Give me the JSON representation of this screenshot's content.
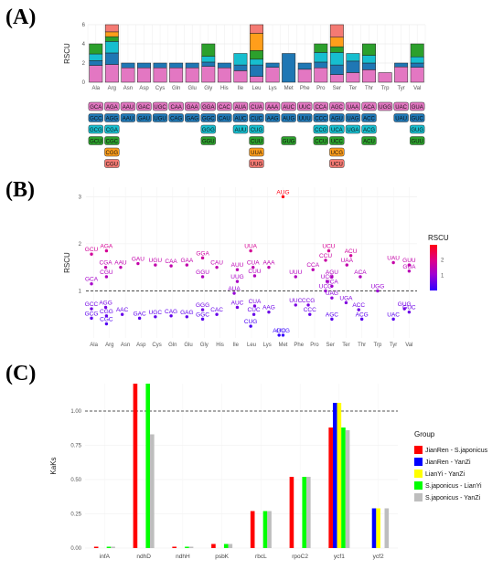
{
  "panels": {
    "a": "(A)",
    "b": "(B)",
    "c": "(C)"
  },
  "colors": {
    "pink": "#E377C2",
    "blue": "#1F77B4",
    "teal": "#17BECF",
    "green": "#2CA02C",
    "orange": "#FF9E1B",
    "red": "#F47A73"
  },
  "chart_data": [
    {
      "type": "bar",
      "panel": "A",
      "ylabel": "RSCU",
      "ylim": [
        0,
        6
      ],
      "yticks": [
        0,
        2,
        4,
        6
      ],
      "grid": true,
      "categories": [
        "Ala",
        "Arg",
        "Asn",
        "Asp",
        "Cys",
        "Gln",
        "Glu",
        "Gly",
        "His",
        "Ile",
        "Leu",
        "Lys",
        "Met",
        "Phe",
        "Pro",
        "Ser",
        "Ter",
        "Thr",
        "Trp",
        "Tyr",
        "Val"
      ],
      "stacks": [
        [
          {
            "c": "pink",
            "v": 1.75
          },
          {
            "c": "blue",
            "v": 0.5
          },
          {
            "c": "teal",
            "v": 0.7
          },
          {
            "c": "green",
            "v": 1.05
          }
        ],
        [
          {
            "c": "pink",
            "v": 1.85
          },
          {
            "c": "blue",
            "v": 1.2
          },
          {
            "c": "teal",
            "v": 1.2
          },
          {
            "c": "green",
            "v": 0.5
          },
          {
            "c": "orange",
            "v": 0.5
          },
          {
            "c": "red",
            "v": 0.75
          }
        ],
        [
          {
            "c": "pink",
            "v": 1.5
          },
          {
            "c": "blue",
            "v": 0.5
          }
        ],
        [
          {
            "c": "pink",
            "v": 1.5
          },
          {
            "c": "blue",
            "v": 0.5
          }
        ],
        [
          {
            "c": "pink",
            "v": 1.5
          },
          {
            "c": "blue",
            "v": 0.5
          }
        ],
        [
          {
            "c": "pink",
            "v": 1.5
          },
          {
            "c": "blue",
            "v": 0.5
          }
        ],
        [
          {
            "c": "pink",
            "v": 1.5
          },
          {
            "c": "blue",
            "v": 0.5
          }
        ],
        [
          {
            "c": "pink",
            "v": 1.65
          },
          {
            "c": "blue",
            "v": 0.45
          },
          {
            "c": "teal",
            "v": 0.6
          },
          {
            "c": "green",
            "v": 1.3
          }
        ],
        [
          {
            "c": "pink",
            "v": 1.5
          },
          {
            "c": "blue",
            "v": 0.5
          }
        ],
        [
          {
            "c": "pink",
            "v": 1.2
          },
          {
            "c": "blue",
            "v": 0.6
          },
          {
            "c": "teal",
            "v": 1.2
          }
        ],
        [
          {
            "c": "pink",
            "v": 0.6
          },
          {
            "c": "blue",
            "v": 1.2
          },
          {
            "c": "teal",
            "v": 0.6
          },
          {
            "c": "green",
            "v": 0.9
          },
          {
            "c": "orange",
            "v": 1.8
          },
          {
            "c": "red",
            "v": 0.9
          }
        ],
        [
          {
            "c": "pink",
            "v": 1.55
          },
          {
            "c": "blue",
            "v": 0.45
          }
        ],
        [
          {
            "c": "blue",
            "v": 3.0
          }
        ],
        [
          {
            "c": "pink",
            "v": 1.35
          },
          {
            "c": "blue",
            "v": 0.65
          }
        ],
        [
          {
            "c": "pink",
            "v": 1.5
          },
          {
            "c": "blue",
            "v": 0.6
          },
          {
            "c": "teal",
            "v": 1.0
          },
          {
            "c": "green",
            "v": 0.9
          }
        ],
        [
          {
            "c": "pink",
            "v": 0.8
          },
          {
            "c": "blue",
            "v": 1.0
          },
          {
            "c": "teal",
            "v": 1.3
          },
          {
            "c": "green",
            "v": 0.6
          },
          {
            "c": "orange",
            "v": 1.0
          },
          {
            "c": "red",
            "v": 1.3
          }
        ],
        [
          {
            "c": "pink",
            "v": 1.0
          },
          {
            "c": "blue",
            "v": 1.2
          },
          {
            "c": "teal",
            "v": 0.8
          }
        ],
        [
          {
            "c": "pink",
            "v": 1.3
          },
          {
            "c": "blue",
            "v": 0.7
          },
          {
            "c": "teal",
            "v": 0.8
          },
          {
            "c": "green",
            "v": 1.2
          }
        ],
        [
          {
            "c": "pink",
            "v": 1.0
          }
        ],
        [
          {
            "c": "pink",
            "v": 1.6
          },
          {
            "c": "blue",
            "v": 0.4
          }
        ],
        [
          {
            "c": "pink",
            "v": 1.55
          },
          {
            "c": "blue",
            "v": 0.45
          },
          {
            "c": "teal",
            "v": 0.65
          },
          {
            "c": "green",
            "v": 1.35
          }
        ]
      ],
      "codon_rows": [
        {
          "c": "pink",
          "items": [
            "GCA",
            "AGA",
            "AAU",
            "GAC",
            "UGC",
            "CAA",
            "GAA",
            "GGA",
            "CAC",
            "AUA",
            "CUA",
            "AAA",
            "AUC",
            "UUC",
            "CCA",
            "AGC",
            "UAA",
            "ACA",
            "UGG",
            "UAC",
            "GUA"
          ]
        },
        {
          "c": "blue",
          "items": [
            "GCC",
            "AGG",
            "AAU",
            "GAU",
            "UGU",
            "CAG",
            "GAG",
            "GGC",
            "CAU",
            "AUC",
            "CUC",
            "AAG",
            "AUG",
            "UUU",
            "CCC",
            "AGU",
            "UAG",
            "ACC",
            "",
            "UAU",
            "GUC"
          ]
        },
        {
          "c": "teal",
          "items": [
            "GCG",
            "CGA",
            "",
            "",
            "",
            "",
            "",
            "GGG",
            "",
            "AUU",
            "CUG",
            "",
            "",
            "",
            "CCG",
            "UCA",
            "UGA",
            "ACG",
            "",
            "",
            "GUG"
          ]
        },
        {
          "c": "green",
          "items": [
            "GCU",
            "CGC",
            "",
            "",
            "",
            "",
            "",
            "GGU",
            "",
            "",
            "CUU",
            "",
            "GUG",
            "",
            "CCU",
            "UCC",
            "",
            "ACU",
            "",
            "",
            "GUU"
          ]
        },
        {
          "c": "orange",
          "items": [
            "",
            "CGG",
            "",
            "",
            "",
            "",
            "",
            "",
            "",
            "",
            "UUA",
            "",
            "",
            "",
            "",
            "UCG",
            "",
            "",
            "",
            "",
            ""
          ]
        },
        {
          "c": "red",
          "items": [
            "",
            "CGU",
            "",
            "",
            "",
            "",
            "",
            "",
            "",
            "",
            "UUG",
            "",
            "",
            "",
            "",
            "UCU",
            "",
            "",
            "",
            "",
            ""
          ]
        }
      ]
    },
    {
      "type": "scatter",
      "panel": "B",
      "ylabel": "RSCU",
      "ylim": [
        0,
        3.2
      ],
      "yticks": [
        1,
        2,
        3
      ],
      "reference_line": 1,
      "categories": [
        "Ala",
        "Arg",
        "Asn",
        "Asp",
        "Cys",
        "Gln",
        "Glu",
        "Gly",
        "His",
        "Ile",
        "Leu",
        "Lys",
        "Met",
        "Phe",
        "Pro",
        "Ser",
        "Ter",
        "Thr",
        "Trp",
        "Tyr",
        "Val"
      ],
      "colorbar": {
        "title": "RSCU",
        "ticks": [
          1,
          2
        ],
        "min": 0,
        "max": 3
      },
      "points": [
        {
          "x": "Ala",
          "dx": -0.15,
          "y": 1.78,
          "l": "GCU"
        },
        {
          "x": "Ala",
          "dx": -0.15,
          "y": 1.15,
          "l": "GCA"
        },
        {
          "x": "Ala",
          "dx": -0.15,
          "y": 0.62,
          "l": "GCC"
        },
        {
          "x": "Ala",
          "dx": -0.15,
          "y": 0.42,
          "l": "GCG"
        },
        {
          "x": "Arg",
          "dx": -0.2,
          "y": 1.85,
          "l": "AGA"
        },
        {
          "x": "Arg",
          "dx": -0.25,
          "y": 1.5,
          "l": "CGA"
        },
        {
          "x": "Arg",
          "dx": -0.2,
          "y": 1.3,
          "l": "CGU"
        },
        {
          "x": "Arg",
          "dx": -0.25,
          "y": 0.65,
          "l": "AGG"
        },
        {
          "x": "Arg",
          "dx": -0.2,
          "y": 0.47,
          "l": "CGG"
        },
        {
          "x": "Arg",
          "dx": -0.2,
          "y": 0.3,
          "l": "CGC"
        },
        {
          "x": "Asn",
          "dx": -0.3,
          "y": 1.5,
          "l": "AAU"
        },
        {
          "x": "Asn",
          "dx": -0.2,
          "y": 0.5,
          "l": "AAC"
        },
        {
          "x": "Asp",
          "dx": -0.2,
          "y": 1.58,
          "l": "GAU"
        },
        {
          "x": "Asp",
          "dx": -0.1,
          "y": 0.42,
          "l": "GAC"
        },
        {
          "x": "Cys",
          "dx": -0.1,
          "y": 1.55,
          "l": "UGU"
        },
        {
          "x": "Cys",
          "dx": -0.1,
          "y": 0.45,
          "l": "UGC"
        },
        {
          "x": "Gln",
          "dx": -0.1,
          "y": 1.53,
          "l": "CAA"
        },
        {
          "x": "Gln",
          "dx": -0.1,
          "y": 0.47,
          "l": "CAG"
        },
        {
          "x": "Glu",
          "dx": -0.1,
          "y": 1.55,
          "l": "GAA"
        },
        {
          "x": "Glu",
          "dx": -0.1,
          "y": 0.45,
          "l": "GAG"
        },
        {
          "x": "Gly",
          "dx": -0.1,
          "y": 1.7,
          "l": "GGA"
        },
        {
          "x": "Gly",
          "dx": -0.1,
          "y": 1.3,
          "l": "GGU"
        },
        {
          "x": "Gly",
          "dx": -0.1,
          "y": 0.6,
          "l": "GGG"
        },
        {
          "x": "Gly",
          "dx": -0.1,
          "y": 0.4,
          "l": "GGC"
        },
        {
          "x": "His",
          "dx": -0.2,
          "y": 1.5,
          "l": "CAU"
        },
        {
          "x": "His",
          "dx": -0.2,
          "y": 0.5,
          "l": "CAC"
        },
        {
          "x": "Ile",
          "dx": 0.1,
          "y": 1.45,
          "l": "AUU"
        },
        {
          "x": "Ile",
          "dx": 0.1,
          "y": 1.2,
          "l": "UUG"
        },
        {
          "x": "Ile",
          "dx": -0.1,
          "y": 0.95,
          "l": "AUA"
        },
        {
          "x": "Ile",
          "dx": 0.1,
          "y": 0.65,
          "l": "AUC"
        },
        {
          "x": "Leu",
          "dx": -0.05,
          "y": 1.85,
          "l": "UUA"
        },
        {
          "x": "Leu",
          "dx": 0.1,
          "y": 1.5,
          "l": "CUA"
        },
        {
          "x": "Leu",
          "dx": 0.2,
          "y": 1.32,
          "l": "CUU"
        },
        {
          "x": "Leu",
          "dx": 0.2,
          "y": 0.68,
          "l": "CUA"
        },
        {
          "x": "Leu",
          "dx": 0.15,
          "y": 0.5,
          "l": "CUC"
        },
        {
          "x": "Leu",
          "dx": -0.05,
          "y": 0.25,
          "l": "CUG"
        },
        {
          "x": "Lys",
          "dx": 0.1,
          "y": 1.5,
          "l": "AAA"
        },
        {
          "x": "Lys",
          "dx": 0.1,
          "y": 0.55,
          "l": "AAG"
        },
        {
          "x": "Met",
          "dx": 0,
          "y": 3.0,
          "l": "AUG"
        },
        {
          "x": "Met",
          "dx": -0.25,
          "y": 0.06,
          "l": "AUC"
        },
        {
          "x": "Met",
          "dx": 0,
          "y": 0.06,
          "l": "GUG"
        },
        {
          "x": "Phe",
          "dx": -0.2,
          "y": 1.3,
          "l": "UUU"
        },
        {
          "x": "Phe",
          "dx": -0.2,
          "y": 0.7,
          "l": "UUC"
        },
        {
          "x": "Pro",
          "dx": -0.1,
          "y": 1.45,
          "l": "CCA"
        },
        {
          "x": "Pro",
          "dx": -0.4,
          "y": 0.7,
          "l": "CCG"
        },
        {
          "x": "Pro",
          "dx": -0.3,
          "y": 0.5,
          "l": "CCC"
        },
        {
          "x": "Ser",
          "dx": -0.3,
          "y": 1.65,
          "l": "CCU"
        },
        {
          "x": "Ser",
          "dx": -0.1,
          "y": 1.85,
          "l": "UCU"
        },
        {
          "x": "Ser",
          "dx": 0.1,
          "y": 1.3,
          "l": "AGU"
        },
        {
          "x": "Ser",
          "dx": -0.2,
          "y": 1.2,
          "l": "UCC"
        },
        {
          "x": "Ser",
          "dx": 0.1,
          "y": 1.1,
          "l": "UCA"
        },
        {
          "x": "Ser",
          "dx": -0.3,
          "y": 1.0,
          "l": "UCG"
        },
        {
          "x": "Ser",
          "dx": 0.1,
          "y": 0.85,
          "l": "UAG"
        },
        {
          "x": "Ser",
          "dx": 0.1,
          "y": 0.4,
          "l": "AGC"
        },
        {
          "x": "Ter",
          "dx": 0.3,
          "y": 1.75,
          "l": "ACU"
        },
        {
          "x": "Ter",
          "dx": 0.05,
          "y": 1.55,
          "l": "UAA"
        },
        {
          "x": "Ter",
          "dx": 0.0,
          "y": 0.75,
          "l": "UGA"
        },
        {
          "x": "Thr",
          "dx": -0.1,
          "y": 1.3,
          "l": "ACA"
        },
        {
          "x": "Thr",
          "dx": -0.2,
          "y": 0.6,
          "l": "ACC"
        },
        {
          "x": "Thr",
          "dx": 0.0,
          "y": 0.4,
          "l": "ACG"
        },
        {
          "x": "Trp",
          "dx": 0,
          "y": 1.0,
          "l": "UGG"
        },
        {
          "x": "Tyr",
          "dx": 0,
          "y": 1.6,
          "l": "UAU"
        },
        {
          "x": "Tyr",
          "dx": 0,
          "y": 0.4,
          "l": "UAC"
        },
        {
          "x": "Val",
          "dx": 0,
          "y": 1.55,
          "l": "GUU"
        },
        {
          "x": "Val",
          "dx": 0,
          "y": 1.42,
          "l": "GUA"
        },
        {
          "x": "Val",
          "dx": -0.3,
          "y": 0.62,
          "l": "GUG"
        },
        {
          "x": "Val",
          "dx": 0,
          "y": 0.55,
          "l": "GUC"
        }
      ]
    },
    {
      "type": "bar",
      "panel": "C",
      "ylabel": "KaKs",
      "ylim": [
        0,
        1.2
      ],
      "yticks": [
        0.0,
        0.25,
        0.5,
        0.75,
        1.0
      ],
      "ytick_labels": [
        "0.00",
        "0.25",
        "0.50",
        "0.75",
        "1.00"
      ],
      "reference_line": 1.0,
      "categories": [
        "infA",
        "ndhD",
        "ndhH",
        "psbK",
        "rbcL",
        "rpoC2",
        "ycf1",
        "ycf2"
      ],
      "series": [
        {
          "name": "JianRen - S.japonicus",
          "color": "#FF0000",
          "values": [
            0.01,
            1.2,
            0.01,
            0.03,
            0.27,
            0.52,
            0.88,
            0
          ]
        },
        {
          "name": "JianRen - YanZi",
          "color": "#0000FF",
          "values": [
            0,
            0,
            0,
            0,
            0,
            0,
            1.06,
            0.29
          ]
        },
        {
          "name": "LianYi - YanZi",
          "color": "#FFFF00",
          "values": [
            0,
            0,
            0,
            0,
            0,
            0,
            1.06,
            0.29
          ]
        },
        {
          "name": "S.japonicus - LianYi",
          "color": "#00FF00",
          "values": [
            0.01,
            1.2,
            0.01,
            0.03,
            0.27,
            0.52,
            0.88,
            0
          ]
        },
        {
          "name": "S.japonicus - YanZi",
          "color": "#BEBEBE",
          "values": [
            0.01,
            0.83,
            0.01,
            0.03,
            0.27,
            0.52,
            0.86,
            0.29
          ]
        }
      ],
      "legend": {
        "title": "Group",
        "position": "right"
      }
    }
  ]
}
